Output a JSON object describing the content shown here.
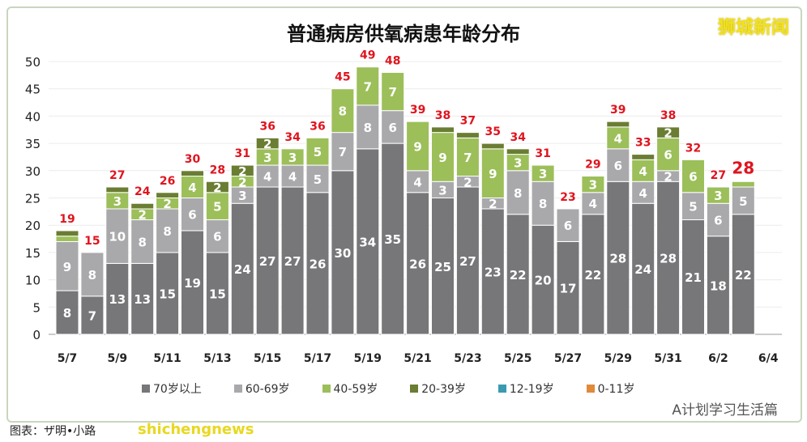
{
  "title": "普通病房供氧病患年龄分布",
  "logo": "狮城新闻",
  "source": "图表：ザ明•小路",
  "watermark": "shichengnews",
  "wechat": "A计划学习生活篇",
  "chart_data": {
    "type": "bar",
    "stacked": true,
    "title": "普通病房供氧病患年龄分布",
    "ylim": [
      0,
      50
    ],
    "yticks": [
      0,
      5,
      10,
      15,
      20,
      25,
      30,
      35,
      40,
      45,
      50
    ],
    "grid": true,
    "legend": "bottom",
    "categories": [
      "5/7",
      "5/8",
      "5/9",
      "5/10",
      "5/11",
      "5/12",
      "5/13",
      "5/14",
      "5/15",
      "5/16",
      "5/17",
      "5/18",
      "5/19",
      "5/20",
      "5/21",
      "5/22",
      "5/23",
      "5/24",
      "5/25",
      "5/26",
      "5/27",
      "5/28",
      "5/29",
      "5/30",
      "5/31",
      "6/1",
      "6/2",
      "6/3",
      "6/4"
    ],
    "xtick_labels": [
      "5/7",
      "5/9",
      "5/11",
      "5/13",
      "5/15",
      "5/17",
      "5/19",
      "5/21",
      "5/23",
      "5/25",
      "5/27",
      "5/29",
      "5/31",
      "6/2",
      "6/4"
    ],
    "series": [
      {
        "name": "70岁以上",
        "color": "#77777a",
        "values": [
          8,
          7,
          13,
          13,
          15,
          19,
          15,
          24,
          27,
          27,
          26,
          30,
          34,
          35,
          26,
          25,
          27,
          23,
          22,
          20,
          17,
          22,
          28,
          24,
          28,
          21,
          18,
          22,
          0
        ]
      },
      {
        "name": "60-69岁",
        "color": "#a9a9ac",
        "values": [
          9,
          8,
          10,
          8,
          8,
          6,
          6,
          3,
          4,
          4,
          5,
          7,
          8,
          6,
          4,
          3,
          2,
          2,
          8,
          8,
          6,
          4,
          6,
          4,
          2,
          5,
          6,
          5,
          0
        ]
      },
      {
        "name": "40-59岁",
        "color": "#9cbf5a",
        "values": [
          1,
          0,
          3,
          2,
          2,
          4,
          5,
          2,
          3,
          3,
          5,
          8,
          7,
          7,
          9,
          9,
          7,
          9,
          3,
          3,
          0,
          3,
          4,
          4,
          6,
          6,
          3,
          1,
          0
        ]
      },
      {
        "name": "20-39岁",
        "color": "#6a7d33",
        "values": [
          1,
          0,
          1,
          1,
          1,
          1,
          2,
          2,
          2,
          0,
          0,
          0,
          0,
          0,
          0,
          1,
          1,
          1,
          1,
          0,
          0,
          0,
          1,
          1,
          2,
          0,
          0,
          0,
          0
        ]
      },
      {
        "name": "12-19岁",
        "color": "#3a9bb0",
        "values": [
          0,
          0,
          0,
          0,
          0,
          0,
          0,
          0,
          0,
          0,
          0,
          0,
          0,
          0,
          0,
          0,
          0,
          0,
          0,
          0,
          0,
          0,
          0,
          0,
          0,
          0,
          0,
          0,
          0
        ]
      },
      {
        "name": "0-11岁",
        "color": "#e08a3a",
        "values": [
          0,
          0,
          0,
          0,
          0,
          0,
          0,
          0,
          0,
          0,
          0,
          0,
          0,
          0,
          0,
          0,
          0,
          0,
          0,
          0,
          0,
          0,
          0,
          0,
          0,
          0,
          0,
          0,
          0
        ]
      }
    ],
    "totals": [
      19,
      15,
      27,
      24,
      26,
      30,
      28,
      31,
      36,
      34,
      36,
      45,
      49,
      48,
      39,
      38,
      37,
      35,
      34,
      31,
      23,
      29,
      39,
      33,
      38,
      32,
      27,
      28,
      null
    ],
    "total_color": "#e0141e"
  }
}
